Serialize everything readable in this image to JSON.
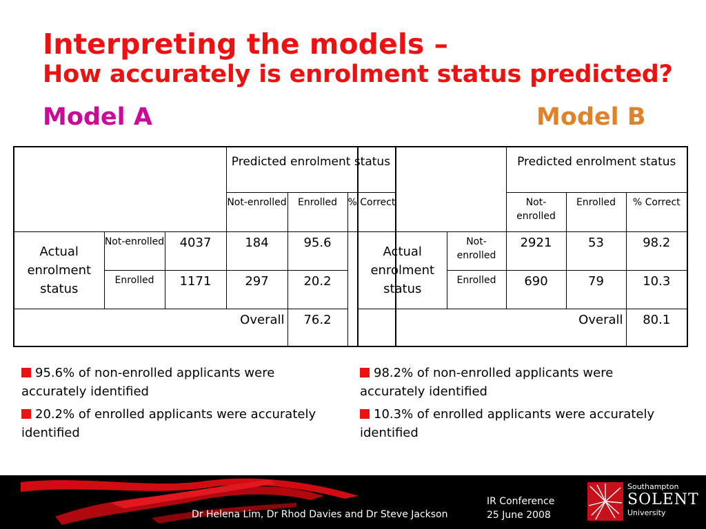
{
  "slide": {
    "title_line1": "Interpreting the models –",
    "title_line2": "How accurately is enrolment status predicted?",
    "model_a_label": "Model A",
    "model_b_label": "Model B"
  },
  "table_header": {
    "predicted": "Predicted enrolment status",
    "not_enrolled": "Not-enrolled",
    "enrolled": "Enrolled",
    "pct_correct": "% Correct",
    "actual": "Actual enrolment status",
    "overall": "Overall"
  },
  "model_a": {
    "rows": [
      {
        "label": "Not-enrolled",
        "not_enrolled": "4037",
        "enrolled": "184",
        "pct": "95.6"
      },
      {
        "label": "Enrolled",
        "not_enrolled": "1171",
        "enrolled": "297",
        "pct": "20.2"
      }
    ],
    "overall": "76.2",
    "bullets": [
      "95.6% of non-enrolled applicants were accurately identified",
      "20.2% of enrolled applicants were accurately identified"
    ]
  },
  "model_b": {
    "rows": [
      {
        "label": "Not-enrolled",
        "not_enrolled": "2921",
        "enrolled": "53",
        "pct": "98.2"
      },
      {
        "label": "Enrolled",
        "not_enrolled": "690",
        "enrolled": "79",
        "pct": "10.3"
      }
    ],
    "overall": "80.1",
    "bullets": [
      "98.2% of non-enrolled applicants were accurately identified",
      "10.3% of enrolled applicants were accurately identified"
    ]
  },
  "footer": {
    "authors": "Dr Helena Lim, Dr Rhod Davies and Dr Steve Jackson",
    "conference": "IR Conference",
    "date": "25 June 2008"
  },
  "logo": {
    "southampton": "Southampton",
    "solent": "SOLENT",
    "university": "University"
  },
  "colors": {
    "title": "#ee1111",
    "model_a": "#cc0a9a",
    "model_b": "#e0822a",
    "bullet": "#ee1111",
    "footer_bg": "#000000"
  }
}
